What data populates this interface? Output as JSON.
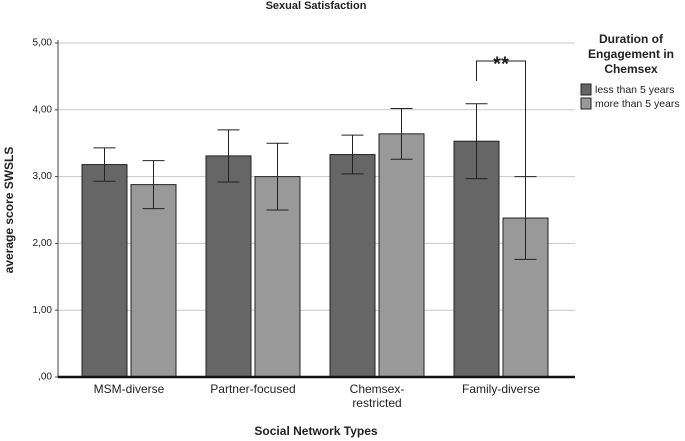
{
  "chart_data": {
    "type": "bar",
    "title": "Sexual Satisfaction",
    "x_label": "Social Network Types",
    "y_label": "average score SWSLS",
    "categories": [
      "MSM-diverse",
      "Partner-focused",
      "Chemsex-restricted",
      "Family-diverse"
    ],
    "series": [
      {
        "name": "less than 5 years",
        "color": "#666666",
        "values": [
          3.18,
          3.31,
          3.33,
          3.53
        ],
        "errors": [
          0.25,
          0.39,
          0.29,
          0.56
        ]
      },
      {
        "name": "more than 5 years",
        "color": "#999999",
        "values": [
          2.88,
          3.0,
          3.64,
          2.38
        ],
        "errors": [
          0.36,
          0.5,
          0.38,
          0.62
        ]
      }
    ],
    "legend_title": [
      "Duration of",
      "Engagement in",
      "Chemsex"
    ],
    "annotations": [
      {
        "text": "**",
        "category": 3
      }
    ],
    "ylim": [
      0,
      5
    ],
    "yticks": [
      {
        "value": 0,
        "label": ",00"
      },
      {
        "value": 1,
        "label": "1,00"
      },
      {
        "value": 2,
        "label": "2,00"
      },
      {
        "value": 3,
        "label": "3,00"
      },
      {
        "value": 4,
        "label": "4,00"
      },
      {
        "value": 5,
        "label": "5,00"
      }
    ],
    "grid": true,
    "legend_position": "right"
  }
}
